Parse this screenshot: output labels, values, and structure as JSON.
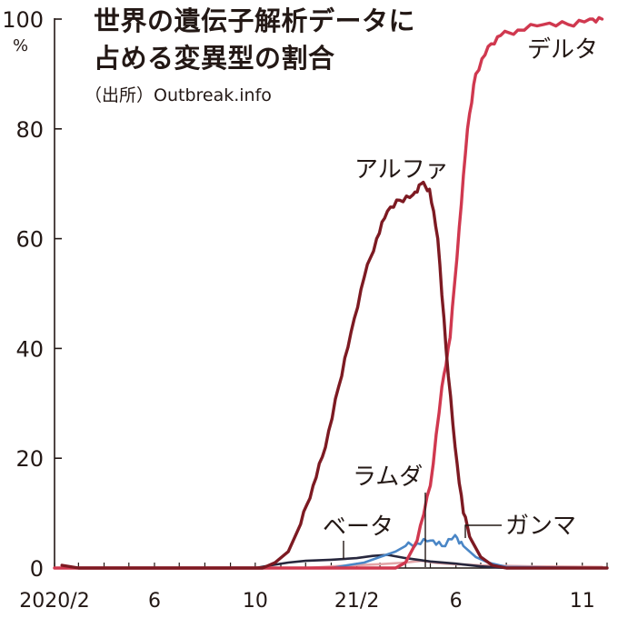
{
  "title": {
    "line1": "世界の遺伝子解析データに",
    "line2": "占める変異型の割合"
  },
  "source": "（出所）Outbreak.info",
  "unit": "%",
  "chart_data": {
    "type": "line",
    "title": "世界の遺伝子解析データに占める変異型の割合",
    "source": "（出所）Outbreak.info",
    "ylabel": "%",
    "ylim": [
      0,
      100
    ],
    "yticks": [
      0,
      20,
      40,
      60,
      80,
      100
    ],
    "xlim": [
      "2020-02",
      "2021-12"
    ],
    "xticks": [
      {
        "label": "2020/2",
        "value": "2020-02"
      },
      {
        "label": "6",
        "value": "2020-06"
      },
      {
        "label": "10",
        "value": "2020-10"
      },
      {
        "label": "21/2",
        "value": "2021-02"
      },
      {
        "label": "6",
        "value": "2021-06"
      },
      {
        "label": "11",
        "value": "2021-11"
      }
    ],
    "grid": false,
    "legend": "direct labels",
    "series": [
      {
        "name": "アルファ",
        "color": "#7d1a22",
        "points": [
          [
            "2020-02-10",
            0.5
          ],
          [
            "2020-03-01",
            0
          ],
          [
            "2020-09-01",
            0
          ],
          [
            "2020-10-10",
            0
          ],
          [
            "2020-10-25",
            1
          ],
          [
            "2020-11-10",
            3
          ],
          [
            "2020-11-25",
            8
          ],
          [
            "2020-12-10",
            15
          ],
          [
            "2020-12-25",
            22
          ],
          [
            "2021-01-10",
            33
          ],
          [
            "2021-01-25",
            43
          ],
          [
            "2021-02-10",
            53
          ],
          [
            "2021-02-25",
            60
          ],
          [
            "2021-03-10",
            65
          ],
          [
            "2021-03-25",
            67
          ],
          [
            "2021-04-10",
            68
          ],
          [
            "2021-04-20",
            70
          ],
          [
            "2021-04-30",
            69
          ],
          [
            "2021-05-10",
            60
          ],
          [
            "2021-05-20",
            40
          ],
          [
            "2021-05-31",
            22
          ],
          [
            "2021-06-10",
            10
          ],
          [
            "2021-06-20",
            5
          ],
          [
            "2021-07-01",
            2
          ],
          [
            "2021-07-15",
            0.5
          ],
          [
            "2021-08-01",
            0
          ],
          [
            "2021-12-01",
            0
          ]
        ]
      },
      {
        "name": "デルタ",
        "color": "#d0384f",
        "points": [
          [
            "2020-02-01",
            0
          ],
          [
            "2021-03-20",
            0
          ],
          [
            "2021-04-01",
            1
          ],
          [
            "2021-04-15",
            5
          ],
          [
            "2021-05-01",
            15
          ],
          [
            "2021-05-15",
            33
          ],
          [
            "2021-05-25",
            42
          ],
          [
            "2021-06-05",
            62
          ],
          [
            "2021-06-15",
            80
          ],
          [
            "2021-06-25",
            90
          ],
          [
            "2021-07-10",
            95
          ],
          [
            "2021-07-25",
            97
          ],
          [
            "2021-08-15",
            98
          ],
          [
            "2021-09-15",
            99
          ],
          [
            "2021-10-15",
            99
          ],
          [
            "2021-11-10",
            100
          ],
          [
            "2021-11-25",
            100
          ]
        ]
      },
      {
        "name": "ガンマ",
        "color": "#4a86c6",
        "points": [
          [
            "2020-02-01",
            0
          ],
          [
            "2021-01-01",
            0
          ],
          [
            "2021-01-20",
            0.5
          ],
          [
            "2021-02-10",
            1
          ],
          [
            "2021-03-01",
            2
          ],
          [
            "2021-03-20",
            3
          ],
          [
            "2021-04-01",
            4
          ],
          [
            "2021-04-15",
            4.5
          ],
          [
            "2021-05-01",
            5
          ],
          [
            "2021-05-15",
            4
          ],
          [
            "2021-05-31",
            6
          ],
          [
            "2021-06-10",
            4
          ],
          [
            "2021-06-25",
            2
          ],
          [
            "2021-07-10",
            1
          ],
          [
            "2021-08-01",
            0.2
          ],
          [
            "2021-12-01",
            0
          ]
        ]
      },
      {
        "name": "ベータ",
        "color": "#27273d",
        "points": [
          [
            "2020-02-01",
            0
          ],
          [
            "2020-10-01",
            0
          ],
          [
            "2020-10-20",
            0.5
          ],
          [
            "2020-11-10",
            1
          ],
          [
            "2020-12-01",
            1.3
          ],
          [
            "2021-01-01",
            1.5
          ],
          [
            "2021-02-01",
            1.8
          ],
          [
            "2021-02-20",
            2.2
          ],
          [
            "2021-03-10",
            2.4
          ],
          [
            "2021-04-01",
            1.8
          ],
          [
            "2021-05-01",
            1.2
          ],
          [
            "2021-06-01",
            0.8
          ],
          [
            "2021-07-01",
            0.3
          ],
          [
            "2021-08-01",
            0
          ],
          [
            "2021-12-01",
            0
          ]
        ]
      },
      {
        "name": "ラムダ",
        "color": "#e3a5a8",
        "points": [
          [
            "2020-02-01",
            0
          ],
          [
            "2020-12-01",
            0
          ],
          [
            "2021-01-15",
            0.4
          ],
          [
            "2021-03-01",
            0.7
          ],
          [
            "2021-04-01",
            1
          ],
          [
            "2021-04-20",
            1.3
          ],
          [
            "2021-05-10",
            0.9
          ],
          [
            "2021-06-01",
            0.7
          ],
          [
            "2021-07-01",
            0.5
          ],
          [
            "2021-09-01",
            0.3
          ],
          [
            "2021-11-25",
            0.2
          ]
        ]
      }
    ],
    "annotations": [
      {
        "text": "アルファ",
        "series": "アルファ"
      },
      {
        "text": "デルタ",
        "series": "デルタ"
      },
      {
        "text": "ガンマ",
        "series": "ガンマ"
      },
      {
        "text": "ベータ",
        "series": "ベータ"
      },
      {
        "text": "ラムダ",
        "series": "ラムダ"
      }
    ]
  }
}
